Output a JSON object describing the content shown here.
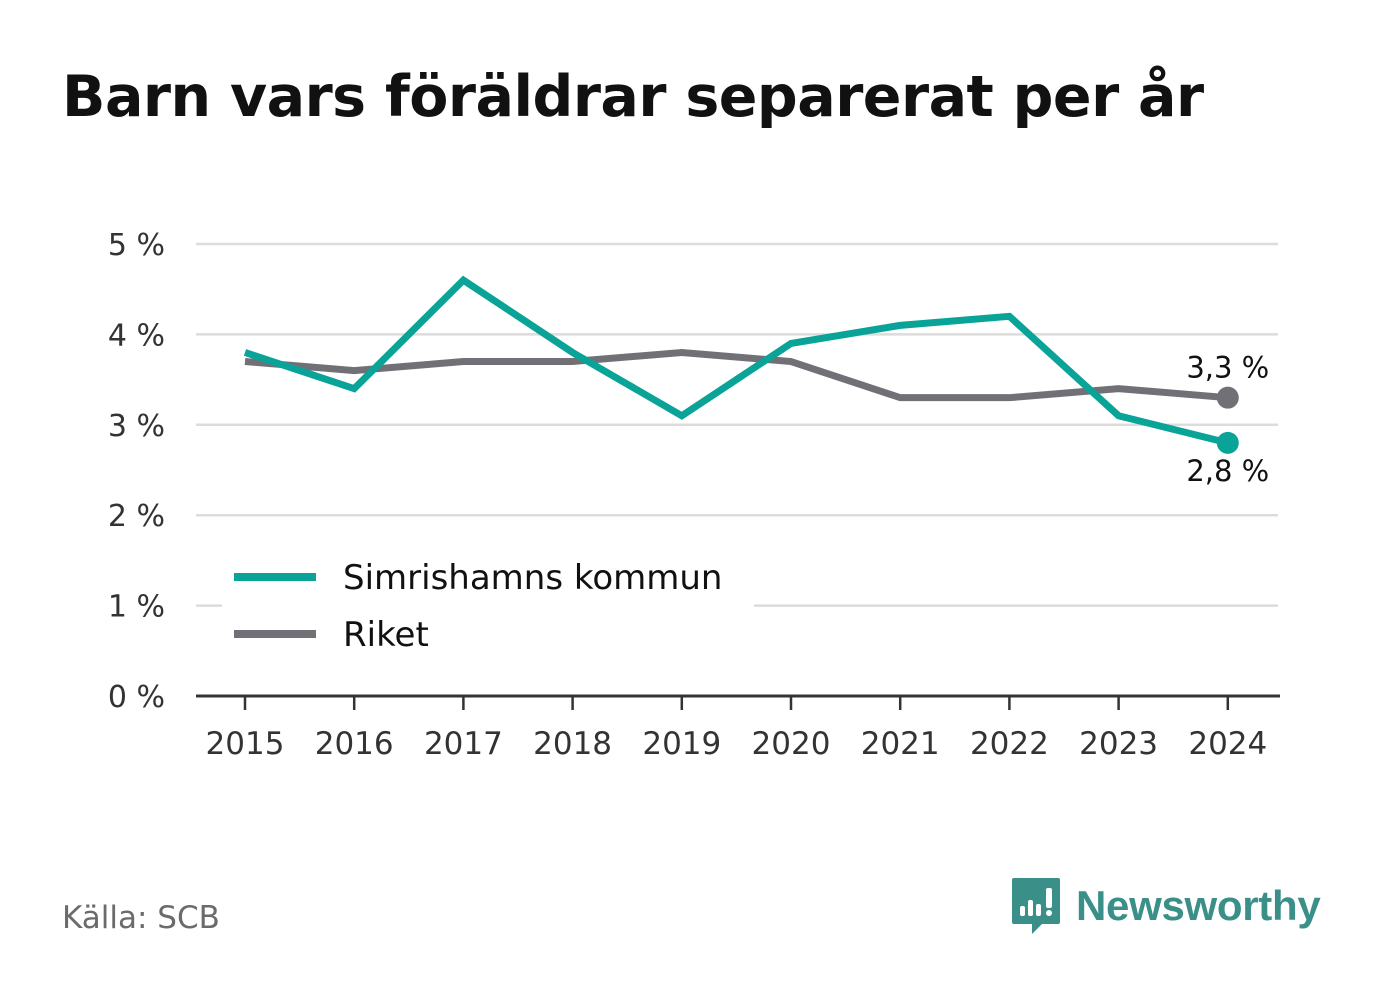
{
  "title": "Barn vars föräldrar separerat per år",
  "source": "Källa: SCB",
  "brand": {
    "name": "Newsworthy",
    "icon": "newsworthy-logo-icon",
    "color": "#3a9088"
  },
  "chart_data": {
    "type": "line",
    "title": "Barn vars föräldrar separerat per år",
    "x": [
      "2015",
      "2016",
      "2017",
      "2018",
      "2019",
      "2020",
      "2021",
      "2022",
      "2023",
      "2024"
    ],
    "ylim": [
      0,
      5
    ],
    "y_ticks": [
      "0 %",
      "1 %",
      "2 %",
      "3 %",
      "4 %",
      "5 %"
    ],
    "grid": true,
    "legend_position": "lower-left",
    "series": [
      {
        "name": "Simrishamns kommun",
        "color": "#0aa398",
        "values": [
          3.8,
          3.4,
          4.6,
          3.8,
          3.1,
          3.9,
          4.1,
          4.2,
          3.1,
          2.8
        ],
        "end_label": "2,8 %"
      },
      {
        "name": "Riket",
        "color": "#717077",
        "values": [
          3.7,
          3.6,
          3.7,
          3.7,
          3.8,
          3.7,
          3.3,
          3.3,
          3.4,
          3.3
        ],
        "end_label": "3,3 %"
      }
    ]
  }
}
